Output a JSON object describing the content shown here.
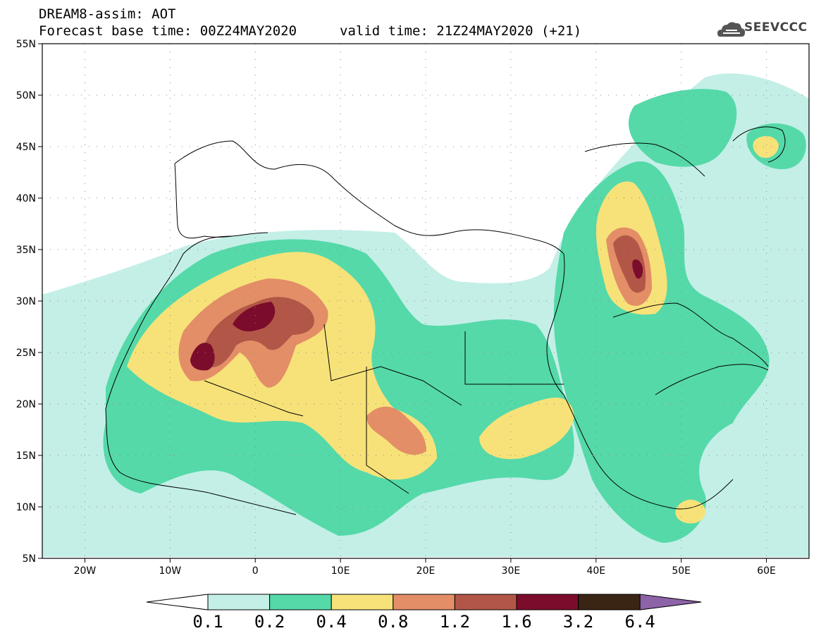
{
  "header": {
    "title": "DREAM8-assim: AOT",
    "base_time": "Forecast base time: 00Z24MAY2020",
    "valid_time": "valid time: 21Z24MAY2020 (+21)"
  },
  "logo": {
    "text": "SEEVCCC",
    "icon": "cloud-icon"
  },
  "map": {
    "lat_labels": [
      "55N",
      "50N",
      "45N",
      "40N",
      "35N",
      "30N",
      "25N",
      "20N",
      "15N",
      "10N",
      "5N"
    ],
    "lat_values": [
      55,
      50,
      45,
      40,
      35,
      30,
      25,
      20,
      15,
      10,
      5
    ],
    "lon_labels": [
      "20W",
      "10W",
      "0",
      "10E",
      "20E",
      "30E",
      "40E",
      "50E",
      "60E"
    ],
    "lon_values": [
      -20,
      -10,
      0,
      10,
      20,
      30,
      40,
      50,
      60
    ],
    "extent": {
      "lon_min": -25,
      "lon_max": 65,
      "lat_min": 5,
      "lat_max": 55
    }
  },
  "colorbar": {
    "labels": [
      "0.1",
      "0.2",
      "0.4",
      "0.8",
      "1.2",
      "1.6",
      "3.2",
      "6.4"
    ],
    "colors": [
      "#ffffff",
      "#c3efe7",
      "#55d9a9",
      "#f7e279",
      "#e38e67",
      "#b25647",
      "#7b0c2c",
      "#3a2414",
      "#8d63a8"
    ]
  },
  "colors": {
    "level_1": "#c3efe7",
    "level_2": "#55d9a9",
    "level_3": "#f7e279",
    "level_4": "#e38e67",
    "level_5": "#b25647",
    "level_6": "#7b0c2c"
  }
}
